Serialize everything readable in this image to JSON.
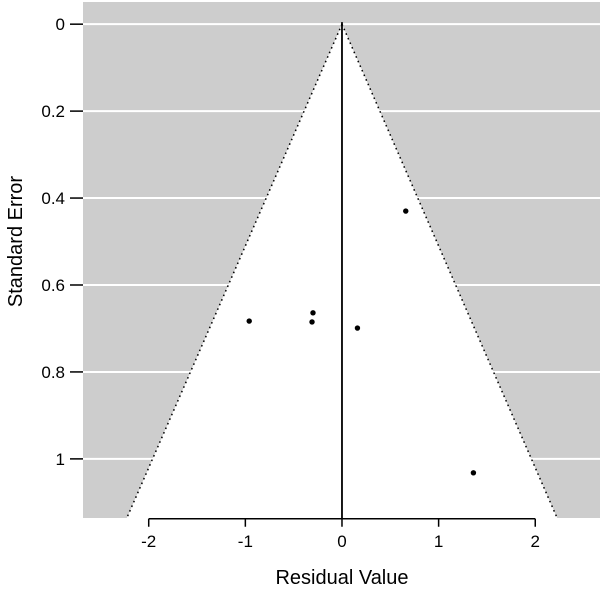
{
  "chart_data": {
    "type": "scatter",
    "subtype": "funnel-plot",
    "title": "",
    "xlabel": "Residual Value",
    "ylabel": "Standard Error",
    "x_ticks": [
      -2,
      -1,
      0,
      1,
      2
    ],
    "y_ticks": [
      0,
      0.2,
      0.4,
      0.6,
      0.8,
      1
    ],
    "xlim": [
      -2.68,
      2.67
    ],
    "ylim_se": [
      -0.051,
      1.136
    ],
    "y_axis_inverted": true,
    "grid": "horizontal-white-lines",
    "legend": "none",
    "funnel": {
      "center_x": 0,
      "apex_se": 0,
      "ci_multiplier": 1.96,
      "edge_style": "dotted",
      "center_line": "solid-vertical"
    },
    "points": [
      {
        "x": -0.96,
        "se": 0.683
      },
      {
        "x": -0.3,
        "se": 0.664
      },
      {
        "x": -0.31,
        "se": 0.685
      },
      {
        "x": 0.16,
        "se": 0.699
      },
      {
        "x": 0.66,
        "se": 0.43
      },
      {
        "x": 1.36,
        "se": 1.032
      }
    ],
    "colors": {
      "panel_bg": "#cdcdcd",
      "funnel_fill": "#ffffff",
      "gridline": "#ffffff",
      "funnel_edge": "#000000",
      "center_line": "#000000",
      "point": "#000000",
      "axis": "#000000",
      "text": "#000000",
      "page_bg": "#ffffff"
    }
  }
}
